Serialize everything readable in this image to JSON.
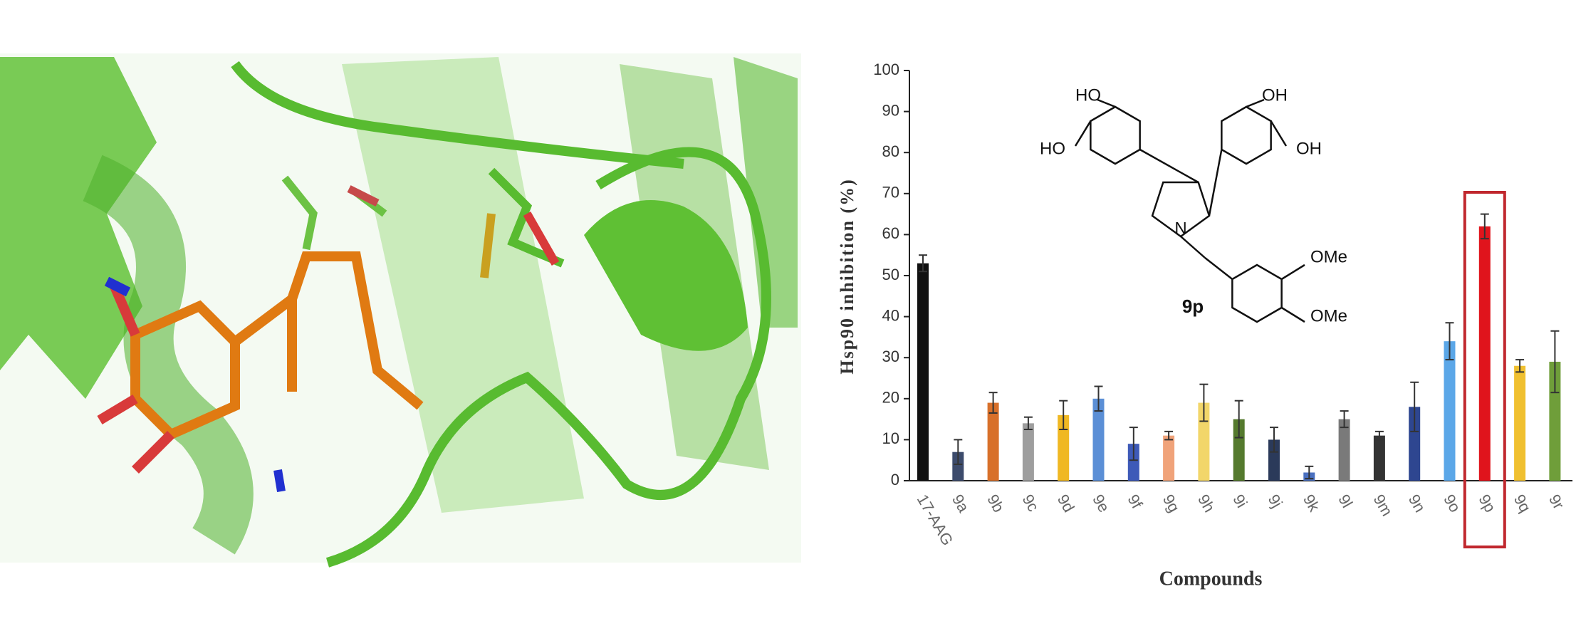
{
  "chart_data": {
    "type": "bar",
    "y_label": "Hsp90 inhibition (%)",
    "x_label": "Compounds",
    "categories": [
      "17-AAG",
      "9a",
      "9b",
      "9c",
      "9d",
      "9e",
      "9f",
      "9g",
      "9h",
      "9i",
      "9j",
      "9k",
      "9l",
      "9m",
      "9n",
      "9o",
      "9p",
      "9q",
      "9r"
    ],
    "values": [
      53,
      7,
      19,
      14,
      16,
      20,
      9,
      11,
      19,
      15,
      10,
      2,
      15,
      11,
      18,
      34,
      62,
      28,
      29
    ],
    "errors": [
      2,
      3,
      2.5,
      1.5,
      3.5,
      3,
      4,
      1,
      4.5,
      4.5,
      3,
      1.5,
      2,
      1,
      6,
      4.5,
      3,
      1.5,
      7.5
    ],
    "colors": [
      "#111111",
      "#3c4b6c",
      "#d8702a",
      "#9e9e9e",
      "#f0b823",
      "#5b8fd6",
      "#3e5ab8",
      "#f0a37a",
      "#f2d66a",
      "#557a2e",
      "#2b3a5a",
      "#4a70c0",
      "#7a7a7a",
      "#333333",
      "#2e4690",
      "#5ba7e8",
      "#e0141c",
      "#f0c030",
      "#6f9e3a"
    ],
    "ylim": [
      0,
      100
    ],
    "yticks": [
      0,
      10,
      20,
      30,
      40,
      50,
      60,
      70,
      80,
      90,
      100
    ],
    "highlight": {
      "index": 16,
      "color": "#c0272d"
    },
    "structure": {
      "name": "9p",
      "labels": [
        "HO",
        "HO",
        "OH",
        "OH",
        "N",
        "OMe",
        "OMe"
      ]
    }
  }
}
